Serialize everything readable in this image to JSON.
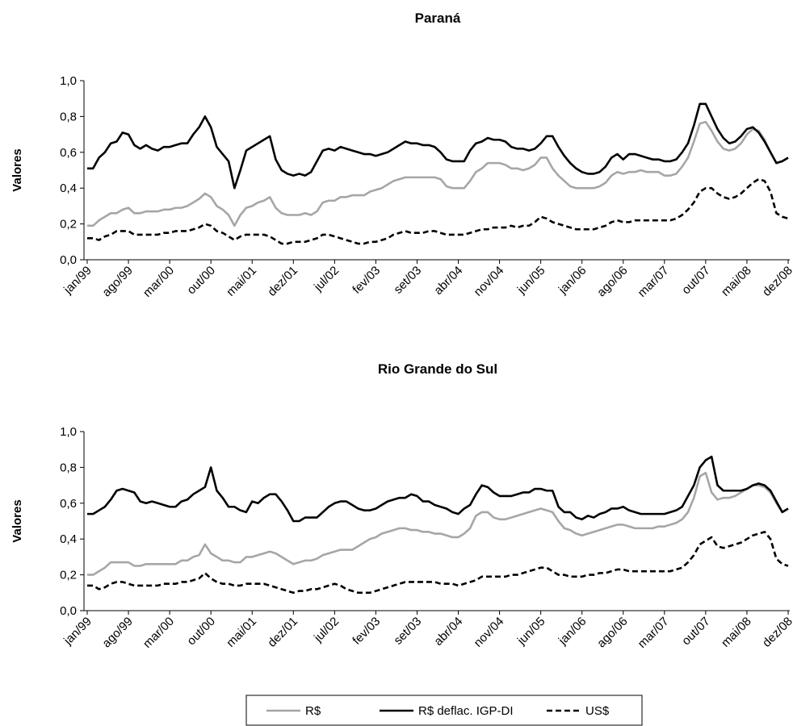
{
  "chart_data": [
    {
      "type": "line",
      "title": "Paraná",
      "y_label": "Valores",
      "categories": [
        "jan/99",
        null,
        null,
        null,
        null,
        null,
        null,
        "ago/99",
        null,
        null,
        null,
        null,
        null,
        null,
        "mar/00",
        null,
        null,
        null,
        null,
        null,
        null,
        "out/00",
        null,
        null,
        null,
        null,
        null,
        null,
        "mai/01",
        null,
        null,
        null,
        null,
        null,
        null,
        "dez/01",
        null,
        null,
        null,
        null,
        null,
        null,
        "jul/02",
        null,
        null,
        null,
        null,
        null,
        null,
        "fev/03",
        null,
        null,
        null,
        null,
        null,
        null,
        "set/03",
        null,
        null,
        null,
        null,
        null,
        null,
        "abr/04",
        null,
        null,
        null,
        null,
        null,
        null,
        "nov/04",
        null,
        null,
        null,
        null,
        null,
        null,
        "jun/05",
        null,
        null,
        null,
        null,
        null,
        null,
        "jan/06",
        null,
        null,
        null,
        null,
        null,
        null,
        "ago/06",
        null,
        null,
        null,
        null,
        null,
        null,
        "mar/07",
        null,
        null,
        null,
        null,
        null,
        null,
        "out/07",
        null,
        null,
        null,
        null,
        null,
        null,
        "mai/08",
        null,
        null,
        null,
        null,
        null,
        null,
        "dez/08"
      ],
      "ylim": [
        0,
        1
      ],
      "yticks": [
        {
          "value": 0,
          "label": "0,0"
        },
        {
          "value": 0.2,
          "label": "0,2"
        },
        {
          "value": 0.4,
          "label": "0,4"
        },
        {
          "value": 0.6,
          "label": "0,6"
        },
        {
          "value": 0.8,
          "label": "0,8"
        },
        {
          "value": 1,
          "label": "1,0"
        }
      ],
      "series": [
        {
          "name": "R$",
          "color": "#a6a6a6",
          "dash": false,
          "values": [
            0.19,
            0.19,
            0.22,
            0.24,
            0.26,
            0.26,
            0.28,
            0.29,
            0.26,
            0.26,
            0.27,
            0.27,
            0.27,
            0.28,
            0.28,
            0.29,
            0.29,
            0.3,
            0.32,
            0.34,
            0.37,
            0.35,
            0.3,
            0.28,
            0.25,
            0.19,
            0.25,
            0.29,
            0.3,
            0.32,
            0.33,
            0.35,
            0.29,
            0.26,
            0.25,
            0.25,
            0.25,
            0.26,
            0.25,
            0.27,
            0.32,
            0.33,
            0.33,
            0.35,
            0.35,
            0.36,
            0.36,
            0.36,
            0.38,
            0.39,
            0.4,
            0.42,
            0.44,
            0.45,
            0.46,
            0.46,
            0.46,
            0.46,
            0.46,
            0.46,
            0.45,
            0.41,
            0.4,
            0.4,
            0.4,
            0.44,
            0.49,
            0.51,
            0.54,
            0.54,
            0.54,
            0.53,
            0.51,
            0.51,
            0.5,
            0.51,
            0.53,
            0.57,
            0.57,
            0.51,
            0.47,
            0.44,
            0.41,
            0.4,
            0.4,
            0.4,
            0.4,
            0.41,
            0.43,
            0.47,
            0.49,
            0.48,
            0.49,
            0.49,
            0.5,
            0.49,
            0.49,
            0.49,
            0.47,
            0.47,
            0.48,
            0.52,
            0.57,
            0.66,
            0.76,
            0.77,
            0.72,
            0.66,
            0.62,
            0.61,
            0.62,
            0.65,
            0.7,
            0.73,
            0.72,
            0.67,
            0.6,
            0.54,
            0.55,
            0.57
          ]
        },
        {
          "name": "R$ deflac. IGP-DI",
          "color": "#000000",
          "dash": false,
          "values": [
            0.51,
            0.51,
            0.57,
            0.6,
            0.65,
            0.66,
            0.71,
            0.7,
            0.64,
            0.62,
            0.64,
            0.62,
            0.61,
            0.63,
            0.63,
            0.64,
            0.65,
            0.65,
            0.7,
            0.74,
            0.8,
            0.74,
            0.63,
            0.59,
            0.55,
            0.4,
            0.5,
            0.61,
            0.63,
            0.65,
            0.67,
            0.69,
            0.56,
            0.5,
            0.48,
            0.47,
            0.48,
            0.47,
            0.49,
            0.55,
            0.61,
            0.62,
            0.61,
            0.63,
            0.62,
            0.61,
            0.6,
            0.59,
            0.59,
            0.58,
            0.59,
            0.6,
            0.62,
            0.64,
            0.66,
            0.65,
            0.65,
            0.64,
            0.64,
            0.63,
            0.6,
            0.56,
            0.55,
            0.55,
            0.55,
            0.61,
            0.65,
            0.66,
            0.68,
            0.67,
            0.67,
            0.66,
            0.63,
            0.62,
            0.62,
            0.61,
            0.62,
            0.65,
            0.69,
            0.69,
            0.63,
            0.58,
            0.54,
            0.51,
            0.49,
            0.48,
            0.48,
            0.49,
            0.52,
            0.57,
            0.59,
            0.56,
            0.59,
            0.59,
            0.58,
            0.57,
            0.56,
            0.56,
            0.55,
            0.55,
            0.56,
            0.6,
            0.65,
            0.75,
            0.87,
            0.87,
            0.8,
            0.73,
            0.68,
            0.65,
            0.66,
            0.69,
            0.73,
            0.74,
            0.71,
            0.66,
            0.6,
            0.54,
            0.55,
            0.57
          ]
        },
        {
          "name": "US$",
          "color": "#000000",
          "dash": true,
          "values": [
            0.12,
            0.12,
            0.11,
            0.13,
            0.14,
            0.16,
            0.16,
            0.16,
            0.14,
            0.14,
            0.14,
            0.14,
            0.14,
            0.15,
            0.15,
            0.16,
            0.16,
            0.16,
            0.17,
            0.18,
            0.2,
            0.19,
            0.16,
            0.15,
            0.13,
            0.11,
            0.13,
            0.14,
            0.14,
            0.14,
            0.14,
            0.13,
            0.11,
            0.09,
            0.09,
            0.1,
            0.1,
            0.1,
            0.11,
            0.12,
            0.14,
            0.14,
            0.13,
            0.12,
            0.11,
            0.1,
            0.09,
            0.09,
            0.1,
            0.1,
            0.11,
            0.12,
            0.14,
            0.15,
            0.16,
            0.15,
            0.15,
            0.15,
            0.16,
            0.16,
            0.15,
            0.14,
            0.14,
            0.14,
            0.14,
            0.15,
            0.16,
            0.17,
            0.17,
            0.18,
            0.18,
            0.18,
            0.19,
            0.18,
            0.19,
            0.19,
            0.21,
            0.24,
            0.23,
            0.21,
            0.2,
            0.19,
            0.18,
            0.17,
            0.17,
            0.17,
            0.17,
            0.18,
            0.19,
            0.21,
            0.22,
            0.21,
            0.21,
            0.22,
            0.22,
            0.22,
            0.22,
            0.22,
            0.22,
            0.22,
            0.23,
            0.25,
            0.28,
            0.32,
            0.38,
            0.4,
            0.4,
            0.37,
            0.35,
            0.34,
            0.35,
            0.37,
            0.4,
            0.43,
            0.45,
            0.44,
            0.38,
            0.26,
            0.24,
            0.23
          ]
        }
      ]
    },
    {
      "type": "line",
      "title": "Rio Grande do Sul",
      "y_label": "Valores",
      "categories": [
        "jan/99",
        null,
        null,
        null,
        null,
        null,
        null,
        "ago/99",
        null,
        null,
        null,
        null,
        null,
        null,
        "mar/00",
        null,
        null,
        null,
        null,
        null,
        null,
        "out/00",
        null,
        null,
        null,
        null,
        null,
        null,
        "mai/01",
        null,
        null,
        null,
        null,
        null,
        null,
        "dez/01",
        null,
        null,
        null,
        null,
        null,
        null,
        "jul/02",
        null,
        null,
        null,
        null,
        null,
        null,
        "fev/03",
        null,
        null,
        null,
        null,
        null,
        null,
        "set/03",
        null,
        null,
        null,
        null,
        null,
        null,
        "abr/04",
        null,
        null,
        null,
        null,
        null,
        null,
        "nov/04",
        null,
        null,
        null,
        null,
        null,
        null,
        "jun/05",
        null,
        null,
        null,
        null,
        null,
        null,
        "jan/06",
        null,
        null,
        null,
        null,
        null,
        null,
        "ago/06",
        null,
        null,
        null,
        null,
        null,
        null,
        "mar/07",
        null,
        null,
        null,
        null,
        null,
        null,
        "out/07",
        null,
        null,
        null,
        null,
        null,
        null,
        "mai/08",
        null,
        null,
        null,
        null,
        null,
        null,
        "dez/08"
      ],
      "ylim": [
        0,
        1
      ],
      "yticks": [
        {
          "value": 0,
          "label": "0,0"
        },
        {
          "value": 0.2,
          "label": "0,2"
        },
        {
          "value": 0.4,
          "label": "0,4"
        },
        {
          "value": 0.6,
          "label": "0,6"
        },
        {
          "value": 0.8,
          "label": "0,8"
        },
        {
          "value": 1,
          "label": "1,0"
        }
      ],
      "series": [
        {
          "color": "#a6a6a6",
          "dash": false,
          "values": [
            0.2,
            0.2,
            0.22,
            0.24,
            0.27,
            0.27,
            0.27,
            0.27,
            0.25,
            0.25,
            0.26,
            0.26,
            0.26,
            0.26,
            0.26,
            0.26,
            0.28,
            0.28,
            0.3,
            0.31,
            0.37,
            0.32,
            0.3,
            0.28,
            0.28,
            0.27,
            0.27,
            0.3,
            0.3,
            0.31,
            0.32,
            0.33,
            0.32,
            0.3,
            0.28,
            0.26,
            0.27,
            0.28,
            0.28,
            0.29,
            0.31,
            0.32,
            0.33,
            0.34,
            0.34,
            0.34,
            0.36,
            0.38,
            0.4,
            0.41,
            0.43,
            0.44,
            0.45,
            0.46,
            0.46,
            0.45,
            0.45,
            0.44,
            0.44,
            0.43,
            0.43,
            0.42,
            0.41,
            0.41,
            0.43,
            0.46,
            0.53,
            0.55,
            0.55,
            0.52,
            0.51,
            0.51,
            0.52,
            0.53,
            0.54,
            0.55,
            0.56,
            0.57,
            0.56,
            0.55,
            0.5,
            0.46,
            0.45,
            0.43,
            0.42,
            0.43,
            0.44,
            0.45,
            0.46,
            0.47,
            0.48,
            0.48,
            0.47,
            0.46,
            0.46,
            0.46,
            0.46,
            0.47,
            0.47,
            0.48,
            0.49,
            0.51,
            0.55,
            0.63,
            0.75,
            0.77,
            0.66,
            0.62,
            0.63,
            0.63,
            0.64,
            0.66,
            0.68,
            0.7,
            0.7,
            0.69,
            0.66,
            0.6,
            0.55,
            0.57
          ]
        },
        {
          "color": "#000000",
          "dash": false,
          "values": [
            0.54,
            0.54,
            0.56,
            0.58,
            0.62,
            0.67,
            0.68,
            0.67,
            0.66,
            0.61,
            0.6,
            0.61,
            0.6,
            0.59,
            0.58,
            0.58,
            0.61,
            0.62,
            0.65,
            0.67,
            0.69,
            0.8,
            0.67,
            0.63,
            0.58,
            0.58,
            0.56,
            0.55,
            0.61,
            0.6,
            0.63,
            0.65,
            0.65,
            0.61,
            0.56,
            0.5,
            0.5,
            0.52,
            0.52,
            0.52,
            0.55,
            0.58,
            0.6,
            0.61,
            0.61,
            0.59,
            0.57,
            0.56,
            0.56,
            0.57,
            0.59,
            0.61,
            0.62,
            0.63,
            0.63,
            0.65,
            0.64,
            0.61,
            0.61,
            0.59,
            0.58,
            0.57,
            0.55,
            0.54,
            0.57,
            0.59,
            0.65,
            0.7,
            0.69,
            0.66,
            0.64,
            0.64,
            0.64,
            0.65,
            0.66,
            0.66,
            0.68,
            0.68,
            0.67,
            0.67,
            0.58,
            0.55,
            0.55,
            0.52,
            0.51,
            0.53,
            0.52,
            0.54,
            0.55,
            0.57,
            0.57,
            0.58,
            0.56,
            0.55,
            0.54,
            0.54,
            0.54,
            0.54,
            0.54,
            0.55,
            0.56,
            0.58,
            0.64,
            0.7,
            0.8,
            0.84,
            0.86,
            0.7,
            0.67,
            0.67,
            0.67,
            0.67,
            0.68,
            0.7,
            0.71,
            0.7,
            0.67,
            0.61,
            0.55,
            0.57
          ]
        },
        {
          "color": "#000000",
          "dash": true,
          "values": [
            0.14,
            0.14,
            0.12,
            0.13,
            0.15,
            0.16,
            0.16,
            0.15,
            0.14,
            0.14,
            0.14,
            0.14,
            0.14,
            0.15,
            0.15,
            0.15,
            0.16,
            0.16,
            0.17,
            0.18,
            0.21,
            0.18,
            0.16,
            0.15,
            0.15,
            0.14,
            0.14,
            0.15,
            0.15,
            0.15,
            0.15,
            0.14,
            0.13,
            0.12,
            0.11,
            0.1,
            0.11,
            0.11,
            0.12,
            0.12,
            0.13,
            0.14,
            0.15,
            0.14,
            0.12,
            0.11,
            0.1,
            0.1,
            0.1,
            0.11,
            0.12,
            0.13,
            0.14,
            0.15,
            0.16,
            0.16,
            0.16,
            0.16,
            0.16,
            0.16,
            0.15,
            0.15,
            0.15,
            0.14,
            0.15,
            0.16,
            0.17,
            0.19,
            0.19,
            0.19,
            0.19,
            0.19,
            0.2,
            0.2,
            0.21,
            0.22,
            0.23,
            0.24,
            0.24,
            0.22,
            0.2,
            0.2,
            0.19,
            0.19,
            0.19,
            0.2,
            0.2,
            0.21,
            0.21,
            0.22,
            0.23,
            0.23,
            0.22,
            0.22,
            0.22,
            0.22,
            0.22,
            0.22,
            0.22,
            0.22,
            0.23,
            0.24,
            0.27,
            0.31,
            0.37,
            0.39,
            0.41,
            0.36,
            0.35,
            0.36,
            0.37,
            0.38,
            0.4,
            0.42,
            0.43,
            0.44,
            0.4,
            0.29,
            0.26,
            0.25
          ]
        }
      ]
    }
  ]
}
